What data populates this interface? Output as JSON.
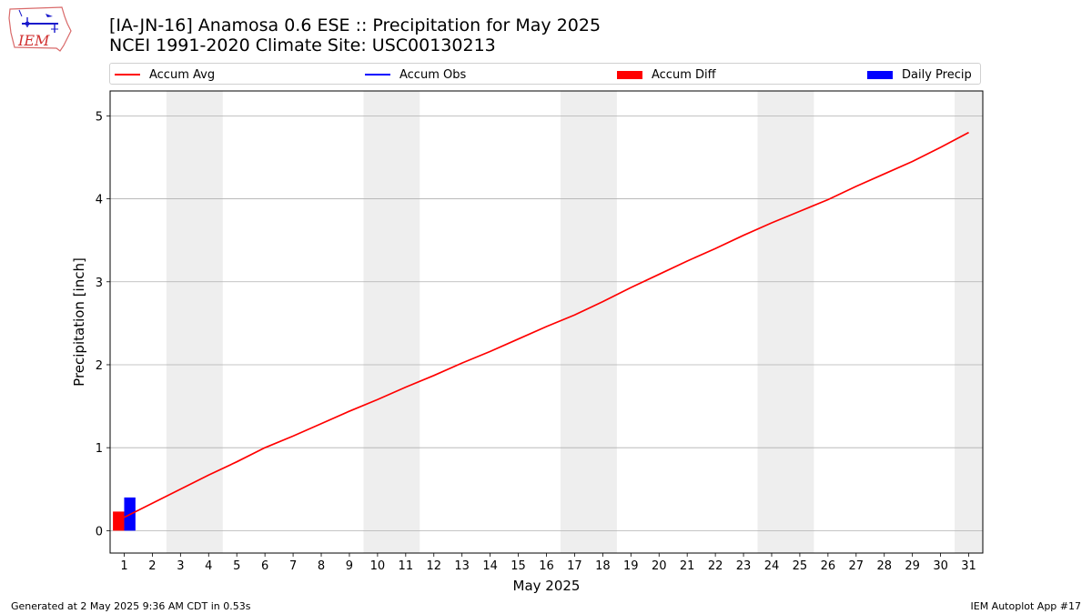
{
  "title": "[IA-JN-16] Anamosa 0.6 ESE :: Precipitation for May 2025",
  "subtitle": "NCEI 1991-2020 Climate Site: USC00130213",
  "logo": {
    "icon": "iem-iowa-logo-icon",
    "text": "IEM"
  },
  "legend": {
    "placement": "top",
    "items": [
      {
        "label": "Accum Avg",
        "kind": "line",
        "color": "#ff0000"
      },
      {
        "label": "Accum Obs",
        "kind": "line",
        "color": "#0000ff"
      },
      {
        "label": "Accum Diff",
        "kind": "patch",
        "color": "#ff0000"
      },
      {
        "label": "Daily Precip",
        "kind": "patch",
        "color": "#0000ff"
      }
    ]
  },
  "footer": {
    "left": "Generated at 2 May 2025 9:36 AM CDT in 0.53s",
    "right": "IEM Autoplot App #17"
  },
  "chart_data": {
    "type": "line",
    "xlabel": "May 2025",
    "ylabel": "Precipitation [inch]",
    "xlim": [
      0.5,
      31.5
    ],
    "ylim": [
      -0.27,
      5.3
    ],
    "x_ticks": [
      1,
      2,
      3,
      4,
      5,
      6,
      7,
      8,
      9,
      10,
      11,
      12,
      13,
      14,
      15,
      16,
      17,
      18,
      19,
      20,
      21,
      22,
      23,
      24,
      25,
      26,
      27,
      28,
      29,
      30,
      31
    ],
    "y_ticks": [
      0,
      1,
      2,
      3,
      4,
      5
    ],
    "grid": "y",
    "weekend_shading": [
      [
        2.5,
        4.5
      ],
      [
        9.5,
        11.5
      ],
      [
        16.5,
        18.5
      ],
      [
        23.5,
        25.5
      ],
      [
        30.5,
        31.5
      ]
    ],
    "shading_color": "#eeeeee",
    "series": [
      {
        "name": "Accum Avg",
        "type": "line",
        "color": "#ff0000",
        "x": [
          1,
          2,
          3,
          4,
          5,
          6,
          7,
          8,
          9,
          10,
          11,
          12,
          13,
          14,
          15,
          16,
          17,
          18,
          19,
          20,
          21,
          22,
          23,
          24,
          25,
          26,
          27,
          28,
          29,
          30,
          31
        ],
        "values": [
          0.16,
          0.33,
          0.5,
          0.67,
          0.83,
          1.0,
          1.14,
          1.29,
          1.44,
          1.58,
          1.73,
          1.87,
          2.02,
          2.16,
          2.31,
          2.46,
          2.6,
          2.76,
          2.93,
          3.09,
          3.25,
          3.4,
          3.56,
          3.71,
          3.85,
          3.99,
          4.15,
          4.3,
          4.45,
          4.62,
          4.8
        ]
      },
      {
        "name": "Accum Obs",
        "type": "line",
        "color": "#0000ff",
        "x": [
          1
        ],
        "values": [
          0.4
        ]
      },
      {
        "name": "Accum Diff",
        "type": "bar",
        "color": "#ff0000",
        "x": [
          1
        ],
        "values": [
          0.23
        ]
      },
      {
        "name": "Daily Precip",
        "type": "bar",
        "color": "#0000ff",
        "x": [
          1
        ],
        "values": [
          0.4
        ]
      }
    ]
  }
}
